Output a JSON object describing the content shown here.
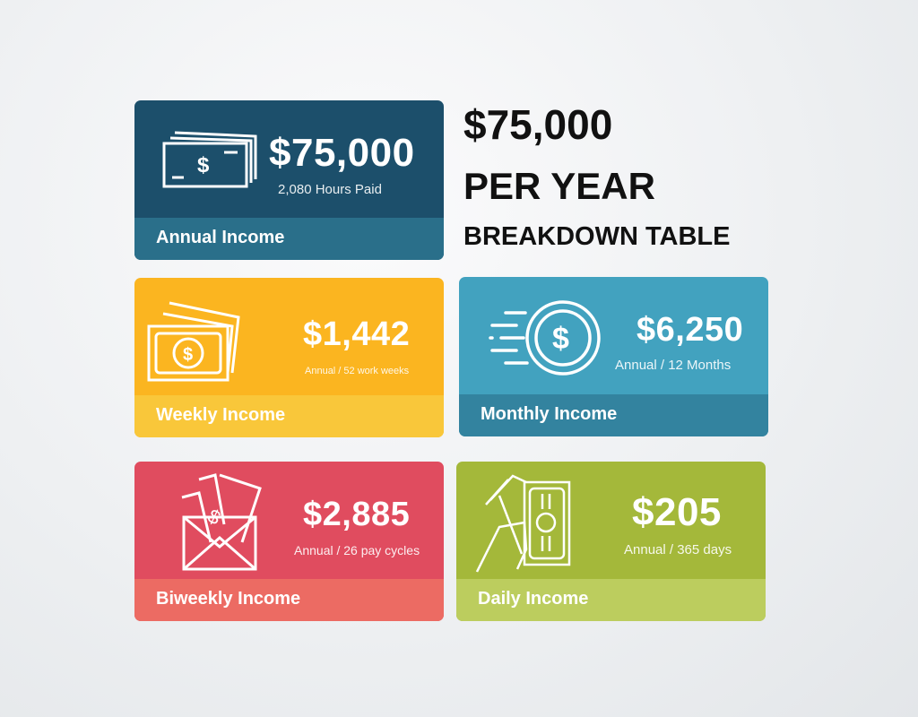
{
  "heading": {
    "amount": "$75,000",
    "line2": "PER YEAR",
    "line3": "BREAKDOWN TABLE"
  },
  "cards": {
    "annual": {
      "amount": "$75,000",
      "sub": "2,080 Hours Paid",
      "label": "Annual Income",
      "icon": "cash-stack-icon",
      "color": "#1c4f6b",
      "footer_color": "#2a6f8a"
    },
    "weekly": {
      "amount": "$1,442",
      "sub": "Annual / 52 work weeks",
      "label": "Weekly Income",
      "icon": "banknotes-icon",
      "color": "#fbb520",
      "footer_color": "#f9c73a"
    },
    "monthly": {
      "amount": "$6,250",
      "sub": "Annual / 12 Months",
      "label": "Monthly Income",
      "icon": "fast-coin-icon",
      "color": "#42a2bf",
      "footer_color": "#33839f"
    },
    "biweekly": {
      "amount": "$2,885",
      "sub": "Annual / 26 pay cycles",
      "label": "Biweekly Income",
      "icon": "envelope-money-icon",
      "color": "#e04c5f",
      "footer_color": "#ec6b63"
    },
    "daily": {
      "amount": "$205",
      "sub": "Annual / 365 days",
      "label": "Daily Income",
      "icon": "hand-money-icon",
      "color": "#a4b83a",
      "footer_color": "#bccd5e"
    }
  }
}
